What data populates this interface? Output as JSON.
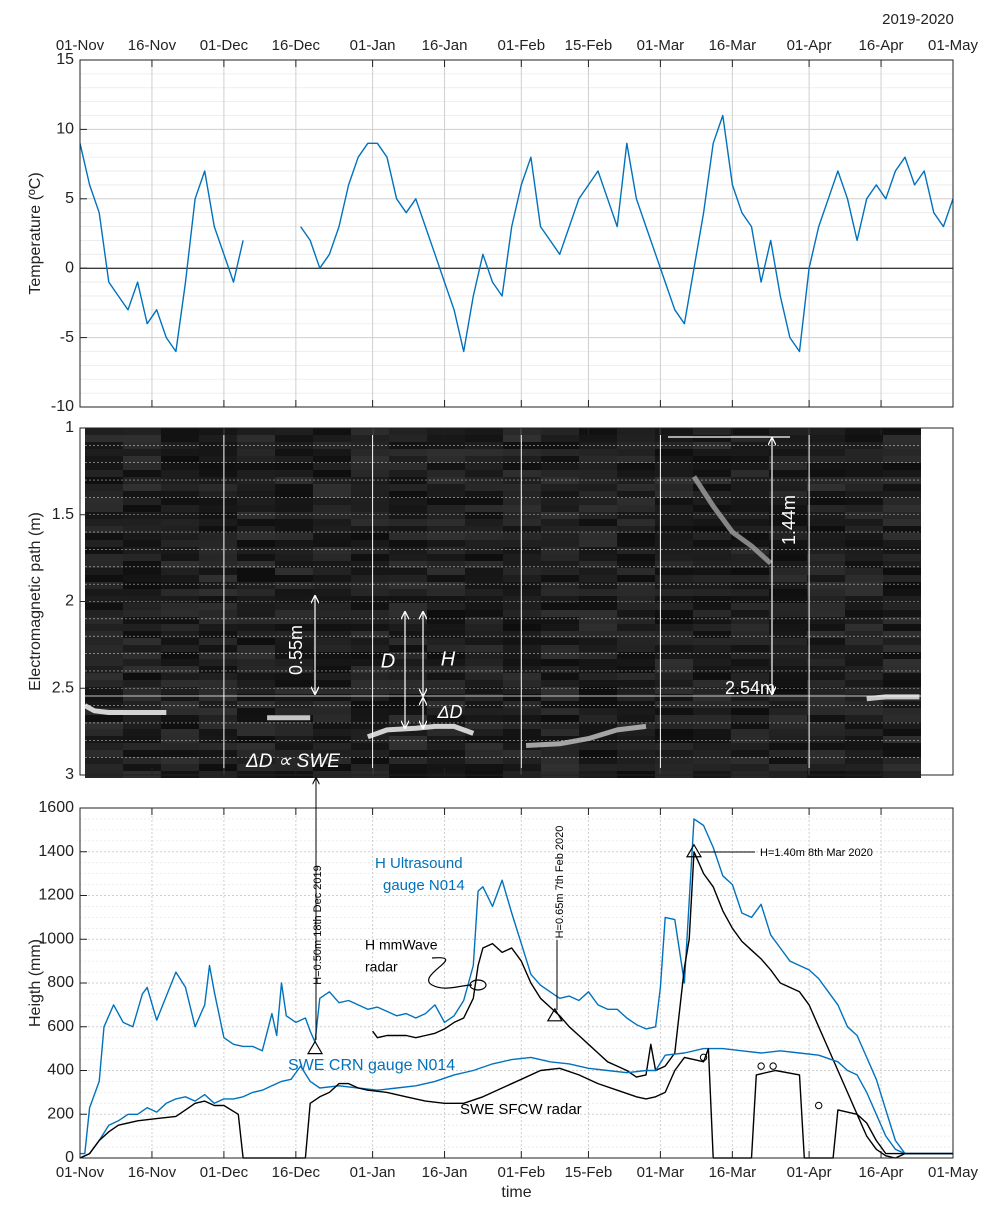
{
  "chart_data": [
    {
      "type": "line",
      "year_label": "2019-2020",
      "ylabel": "Temperature (ºC)",
      "grid": true,
      "minor_grid": true,
      "zero_line": true,
      "xtick_labels": "top",
      "xlim": [
        0,
        182
      ],
      "xticks": [
        {
          "value": 0,
          "label": "01-Nov"
        },
        {
          "value": 15,
          "label": "16-Nov"
        },
        {
          "value": 30,
          "label": "01-Dec"
        },
        {
          "value": 45,
          "label": "16-Dec"
        },
        {
          "value": 61,
          "label": "01-Jan"
        },
        {
          "value": 76,
          "label": "16-Jan"
        },
        {
          "value": 92,
          "label": "01-Feb"
        },
        {
          "value": 106,
          "label": "15-Feb"
        },
        {
          "value": 121,
          "label": "01-Mar"
        },
        {
          "value": 136,
          "label": "16-Mar"
        },
        {
          "value": 152,
          "label": "01-Apr"
        },
        {
          "value": 167,
          "label": "16-Apr"
        },
        {
          "value": 182,
          "label": "01-May"
        }
      ],
      "ylim": [
        -10,
        15
      ],
      "yticks": [
        -10,
        -5,
        0,
        5,
        10,
        15
      ],
      "series": [
        {
          "color": "#0072bd",
          "style": "line",
          "x": [
            0,
            2,
            4,
            6,
            8,
            10,
            12,
            14,
            16,
            18,
            20,
            22,
            24,
            26,
            28,
            30,
            32,
            34,
            36,
            38,
            40,
            42,
            44,
            46,
            48,
            50,
            52,
            54,
            56,
            58,
            60,
            62,
            64,
            66,
            68,
            70,
            72,
            74,
            76,
            78,
            80,
            82,
            84,
            86,
            88,
            90,
            92,
            94,
            96,
            98,
            100,
            102,
            104,
            106,
            108,
            110,
            112,
            114,
            116,
            118,
            120,
            122,
            124,
            126,
            128,
            130,
            132,
            134,
            136,
            138,
            140,
            142,
            144,
            146,
            148,
            150,
            152,
            154,
            156,
            158,
            160,
            162,
            164,
            166,
            168,
            170,
            172,
            174,
            176,
            178,
            180,
            182
          ],
          "values": [
            9,
            6,
            4,
            -1,
            -2,
            -3,
            -1,
            -4,
            -3,
            -5,
            -6,
            -1,
            5,
            7,
            3,
            1,
            -1,
            2,
            null,
            null,
            null,
            null,
            null,
            3,
            2,
            0,
            1,
            3,
            6,
            8,
            9,
            9,
            8,
            5,
            4,
            5,
            3,
            1,
            -1,
            -3,
            -6,
            -2,
            1,
            -1,
            -2,
            3,
            6,
            8,
            3,
            2,
            1,
            3,
            5,
            6,
            7,
            5,
            3,
            9,
            5,
            3,
            1,
            -1,
            -3,
            -4,
            0,
            4,
            9,
            11,
            6,
            4,
            3,
            -1,
            2,
            -2,
            -5,
            -6,
            0,
            3,
            5,
            7,
            5,
            2,
            5,
            6,
            5,
            7,
            8,
            6,
            7,
            4,
            3,
            5
          ]
        }
      ]
    },
    {
      "type": "radargram",
      "ylabel": "Electromagnetic path (m)",
      "y_reversed": true,
      "grid": true,
      "minor_grid": true,
      "xtick_labels": "none",
      "xlim": [
        0,
        182
      ],
      "xticks": [
        {
          "value": 0,
          "label": "01-Nov"
        },
        {
          "value": 15,
          "label": "16-Nov"
        },
        {
          "value": 30,
          "label": "01-Dec"
        },
        {
          "value": 45,
          "label": "16-Dec"
        },
        {
          "value": 61,
          "label": "01-Jan"
        },
        {
          "value": 76,
          "label": "16-Jan"
        },
        {
          "value": 92,
          "label": "01-Feb"
        },
        {
          "value": 106,
          "label": "15-Feb"
        },
        {
          "value": 121,
          "label": "01-Mar"
        },
        {
          "value": 136,
          "label": "16-Mar"
        },
        {
          "value": 152,
          "label": "01-Apr"
        },
        {
          "value": 167,
          "label": "16-Apr"
        },
        {
          "value": 182,
          "label": "01-May"
        }
      ],
      "ylim": [
        1,
        3
      ],
      "yticks": [
        1,
        1.5,
        2,
        2.5,
        3
      ],
      "series": [
        {
          "color": "#f2f2f2",
          "style": "line",
          "x": [
            1,
            3,
            6,
            10,
            14,
            18
          ],
          "values": [
            2.6,
            2.63,
            2.64,
            2.64,
            2.64,
            2.64
          ]
        },
        {
          "color": "#e6e6e6",
          "style": "line",
          "x": [
            39,
            43,
            48
          ],
          "values": [
            2.67,
            2.67,
            2.67
          ]
        },
        {
          "color": "#f2f2f2",
          "style": "line",
          "x": [
            60,
            64,
            70,
            74,
            78,
            82
          ],
          "values": [
            2.78,
            2.74,
            2.73,
            2.72,
            2.72,
            2.76
          ]
        },
        {
          "color": "#bdbdbd",
          "style": "line",
          "x": [
            93,
            100,
            106,
            112,
            118
          ],
          "values": [
            2.83,
            2.82,
            2.79,
            2.74,
            2.72
          ]
        },
        {
          "color": "#e6e6e6",
          "style": "line",
          "x": [
            164,
            168,
            175
          ],
          "values": [
            2.56,
            2.55,
            2.55
          ]
        },
        {
          "color": "#9a9a9a",
          "style": "line",
          "x": [
            128,
            132,
            136,
            140,
            144
          ],
          "values": [
            1.28,
            1.45,
            1.6,
            1.68,
            1.78
          ]
        }
      ],
      "annotations": [
        "0.55m",
        "D",
        "H",
        "ΔD",
        "ΔD ∝ SWE",
        "1.44m",
        "2.54m"
      ]
    },
    {
      "type": "line",
      "ylabel": "Heigth (mm)",
      "xlabel": "time",
      "grid": true,
      "minor_grid": true,
      "xtick_labels": "bottom",
      "xlim": [
        0,
        182
      ],
      "xticks": [
        {
          "value": 0,
          "label": "01-Nov"
        },
        {
          "value": 15,
          "label": "16-Nov"
        },
        {
          "value": 30,
          "label": "01-Dec"
        },
        {
          "value": 45,
          "label": "16-Dec"
        },
        {
          "value": 61,
          "label": "01-Jan"
        },
        {
          "value": 76,
          "label": "16-Jan"
        },
        {
          "value": 92,
          "label": "01-Feb"
        },
        {
          "value": 106,
          "label": "15-Feb"
        },
        {
          "value": 121,
          "label": "01-Mar"
        },
        {
          "value": 136,
          "label": "16-Mar"
        },
        {
          "value": 152,
          "label": "01-Apr"
        },
        {
          "value": 167,
          "label": "16-Apr"
        },
        {
          "value": 182,
          "label": "01-May"
        }
      ],
      "ylim": [
        0,
        1600
      ],
      "yticks": [
        0,
        200,
        400,
        600,
        800,
        1000,
        1200,
        1400,
        1600
      ],
      "series": [
        {
          "color": "#0072bd",
          "style": "line",
          "x": [
            0,
            1,
            2,
            4,
            5,
            7,
            9,
            11,
            13,
            14,
            16,
            18,
            20,
            22,
            24,
            26,
            27,
            28,
            30,
            32,
            34,
            36,
            38,
            40,
            41,
            42,
            43,
            45,
            47,
            48,
            49,
            50,
            52,
            54,
            56,
            58,
            60,
            62,
            64,
            66,
            68,
            70,
            72,
            74,
            76,
            78,
            80,
            82,
            83,
            84,
            86,
            88,
            90,
            92,
            94,
            96,
            98,
            100,
            102,
            104,
            106,
            108,
            110,
            112,
            114,
            116,
            118,
            120,
            121,
            122,
            124,
            126,
            128,
            130,
            132,
            134,
            136,
            138,
            140,
            142,
            144,
            146,
            148,
            150,
            152,
            154,
            156,
            158,
            160,
            162,
            164,
            166,
            168,
            170,
            172,
            182
          ],
          "values": [
            20,
            20,
            230,
            350,
            600,
            700,
            620,
            600,
            750,
            780,
            630,
            740,
            850,
            780,
            600,
            700,
            880,
            760,
            550,
            520,
            510,
            510,
            490,
            660,
            560,
            800,
            650,
            620,
            640,
            580,
            530,
            730,
            760,
            710,
            720,
            700,
            680,
            690,
            670,
            650,
            660,
            640,
            660,
            700,
            620,
            650,
            720,
            880,
            1220,
            1240,
            1150,
            1270,
            1120,
            980,
            840,
            790,
            760,
            730,
            740,
            720,
            760,
            700,
            680,
            680,
            640,
            610,
            590,
            600,
            780,
            1100,
            1090,
            800,
            1550,
            1520,
            1420,
            1290,
            1250,
            1120,
            1100,
            1160,
            1020,
            960,
            900,
            880,
            860,
            820,
            760,
            700,
            600,
            560,
            460,
            360,
            220,
            80,
            20,
            20
          ]
        },
        {
          "color": "#000000",
          "style": "line",
          "x": [
            61,
            62,
            64,
            66,
            68,
            70,
            72,
            74,
            76,
            78,
            80,
            82,
            83,
            84,
            86,
            88,
            90,
            92,
            94,
            96,
            98,
            100,
            102,
            104,
            106,
            108,
            110,
            112,
            114,
            116,
            118,
            119,
            120,
            122,
            124,
            126,
            127,
            128,
            130,
            132,
            134,
            136,
            138,
            140,
            142,
            144,
            146,
            148,
            150,
            152,
            154,
            156,
            158,
            160,
            162,
            164,
            166,
            168,
            170,
            172,
            182
          ],
          "values": [
            580,
            550,
            560,
            560,
            560,
            550,
            560,
            570,
            590,
            620,
            640,
            730,
            880,
            960,
            980,
            940,
            960,
            900,
            800,
            730,
            690,
            650,
            600,
            560,
            520,
            480,
            440,
            420,
            400,
            370,
            380,
            520,
            400,
            420,
            480,
            870,
            1000,
            1400,
            1300,
            1240,
            1130,
            1050,
            990,
            950,
            910,
            860,
            800,
            780,
            760,
            700,
            600,
            500,
            400,
            300,
            200,
            100,
            40,
            10,
            0,
            20,
            20
          ]
        },
        {
          "color": "#0072bd",
          "style": "line",
          "x": [
            0,
            2,
            4,
            6,
            8,
            10,
            12,
            14,
            16,
            18,
            20,
            22,
            24,
            26,
            28,
            30,
            32,
            34,
            36,
            38,
            40,
            42,
            44,
            46,
            48,
            50,
            54,
            58,
            62,
            66,
            70,
            74,
            78,
            82,
            86,
            90,
            94,
            98,
            102,
            106,
            110,
            114,
            118,
            120,
            122,
            126,
            130,
            134,
            138,
            142,
            146,
            150,
            154,
            158,
            160,
            162,
            164,
            166,
            168,
            170,
            172,
            182
          ],
          "values": [
            0,
            20,
            80,
            150,
            170,
            200,
            200,
            230,
            210,
            250,
            270,
            280,
            260,
            290,
            250,
            270,
            270,
            280,
            300,
            310,
            330,
            350,
            360,
            420,
            350,
            320,
            330,
            320,
            310,
            320,
            330,
            350,
            380,
            400,
            430,
            450,
            460,
            440,
            430,
            410,
            400,
            390,
            400,
            400,
            470,
            480,
            500,
            500,
            490,
            480,
            490,
            480,
            470,
            440,
            400,
            380,
            300,
            200,
            100,
            40,
            20,
            20
          ]
        },
        {
          "color": "#000000",
          "style": "line",
          "x": [
            0,
            2,
            4,
            6,
            8,
            12,
            16,
            20,
            22,
            24,
            26,
            28,
            30,
            33,
            34,
            47,
            48,
            50,
            52,
            54,
            56,
            58,
            60,
            64,
            68,
            72,
            76,
            80,
            84,
            88,
            92,
            96,
            100,
            104,
            108,
            112,
            116,
            118,
            120,
            122,
            124,
            126,
            128,
            130,
            131,
            132,
            140,
            141,
            145,
            150,
            151,
            157,
            158,
            162,
            164,
            166,
            168,
            172,
            182
          ],
          "values": [
            0,
            20,
            80,
            120,
            150,
            170,
            180,
            190,
            220,
            250,
            260,
            240,
            240,
            200,
            0,
            0,
            250,
            280,
            300,
            340,
            340,
            320,
            310,
            300,
            280,
            260,
            250,
            250,
            280,
            320,
            360,
            400,
            410,
            380,
            340,
            310,
            280,
            270,
            280,
            300,
            400,
            460,
            450,
            440,
            500,
            0,
            0,
            380,
            400,
            380,
            0,
            0,
            220,
            200,
            160,
            80,
            20,
            20,
            20
          ]
        },
        {
          "color": "#000000",
          "style": "circle",
          "x": [
            130,
            142,
            144.5,
            154
          ],
          "values": [
            460,
            420,
            420,
            240
          ]
        },
        {
          "color": "#000000",
          "style": "triangle",
          "x": [
            49,
            99,
            128
          ],
          "values": [
            500,
            650,
            1400
          ]
        }
      ],
      "annotations": [
        "H Ultrasound",
        "gauge N014",
        "H mmWave",
        "radar",
        "SWE CRN gauge N014",
        "SWE SFCW radar",
        "H=0.50m 18th Dec 2019",
        "H=0.65m 7th Feb 2020",
        "H=1.40m 8th Mar 2020"
      ]
    }
  ]
}
